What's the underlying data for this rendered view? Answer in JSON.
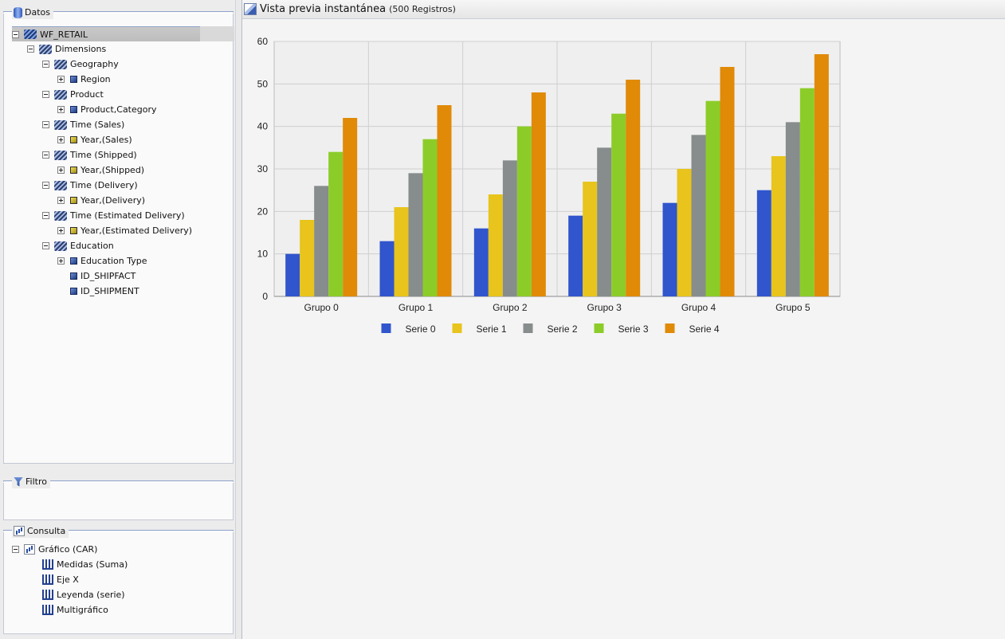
{
  "data_panel": {
    "title": "Datos",
    "tree": [
      {
        "label": "WF_RETAIL",
        "level": 0,
        "toggle": "minus",
        "icon": "cube-icon"
      },
      {
        "label": "Dimensions",
        "level": 1,
        "toggle": "minus",
        "icon": "dimensions-icon"
      },
      {
        "label": "Geography",
        "level": 2,
        "toggle": "minus",
        "icon": "hierarchy-icon"
      },
      {
        "label": "Region",
        "level": 3,
        "toggle": "plus",
        "icon": "field-icon"
      },
      {
        "label": "Product",
        "level": 2,
        "toggle": "minus",
        "icon": "hierarchy-icon"
      },
      {
        "label": "Product,Category",
        "level": 3,
        "toggle": "plus",
        "icon": "field-icon"
      },
      {
        "label": "Time (Sales)",
        "level": 2,
        "toggle": "minus",
        "icon": "hierarchy-icon"
      },
      {
        "label": "Year,(Sales)",
        "level": 3,
        "toggle": "plus",
        "icon": "date-field-icon"
      },
      {
        "label": "Time (Shipped)",
        "level": 2,
        "toggle": "minus",
        "icon": "hierarchy-icon"
      },
      {
        "label": "Year,(Shipped)",
        "level": 3,
        "toggle": "plus",
        "icon": "date-field-icon"
      },
      {
        "label": "Time (Delivery)",
        "level": 2,
        "toggle": "minus",
        "icon": "hierarchy-icon"
      },
      {
        "label": "Year,(Delivery)",
        "level": 3,
        "toggle": "plus",
        "icon": "date-field-icon"
      },
      {
        "label": "Time (Estimated Delivery)",
        "level": 2,
        "toggle": "minus",
        "icon": "hierarchy-icon"
      },
      {
        "label": "Year,(Estimated Delivery)",
        "level": 3,
        "toggle": "plus",
        "icon": "date-field-icon"
      },
      {
        "label": "Education",
        "level": 2,
        "toggle": "minus",
        "icon": "hierarchy-icon"
      },
      {
        "label": "Education Type",
        "level": 3,
        "toggle": "plus",
        "icon": "field-icon"
      },
      {
        "label": "ID_SHIPFACT",
        "level": 3,
        "toggle": "none",
        "icon": "field-icon"
      },
      {
        "label": "ID_SHIPMENT",
        "level": 3,
        "toggle": "none",
        "icon": "field-icon"
      }
    ]
  },
  "filter_panel": {
    "title": "Filtro"
  },
  "query_panel": {
    "title": "Consulta",
    "tree": [
      {
        "label": "Gráfico (CAR)",
        "level": 0,
        "toggle": "minus",
        "icon": "chart-icon"
      },
      {
        "label": "Medidas (Suma)",
        "level": 1,
        "toggle": "none",
        "icon": "bars-icon"
      },
      {
        "label": "Eje X",
        "level": 1,
        "toggle": "none",
        "icon": "bars-icon"
      },
      {
        "label": "Leyenda (serie)",
        "level": 1,
        "toggle": "none",
        "icon": "bars-icon"
      },
      {
        "label": "Multigráfico",
        "level": 1,
        "toggle": "none",
        "icon": "bars-icon"
      }
    ]
  },
  "preview": {
    "title": "Vista previa instantánea",
    "subtitle": "(500 Registros)"
  },
  "chart_data": {
    "type": "bar",
    "categories": [
      "Grupo 0",
      "Grupo 1",
      "Grupo 2",
      "Grupo 3",
      "Grupo 4",
      "Grupo 5"
    ],
    "series": [
      {
        "name": "Serie 0",
        "color": "#3055cc",
        "values": [
          10,
          13,
          16,
          19,
          22,
          25
        ]
      },
      {
        "name": "Serie 1",
        "color": "#e8c41c",
        "values": [
          18,
          21,
          24,
          27,
          30,
          33
        ]
      },
      {
        "name": "Serie 2",
        "color": "#878c8c",
        "values": [
          26,
          29,
          32,
          35,
          38,
          41
        ]
      },
      {
        "name": "Serie 3",
        "color": "#8ccc28",
        "values": [
          34,
          37,
          40,
          43,
          46,
          49
        ]
      },
      {
        "name": "Serie 4",
        "color": "#e08a08",
        "values": [
          42,
          45,
          48,
          51,
          54,
          57
        ]
      }
    ],
    "yticks": [
      0,
      10,
      20,
      30,
      40,
      50,
      60
    ],
    "ylim": [
      0,
      60
    ],
    "grid": true,
    "legend": "bottom"
  }
}
